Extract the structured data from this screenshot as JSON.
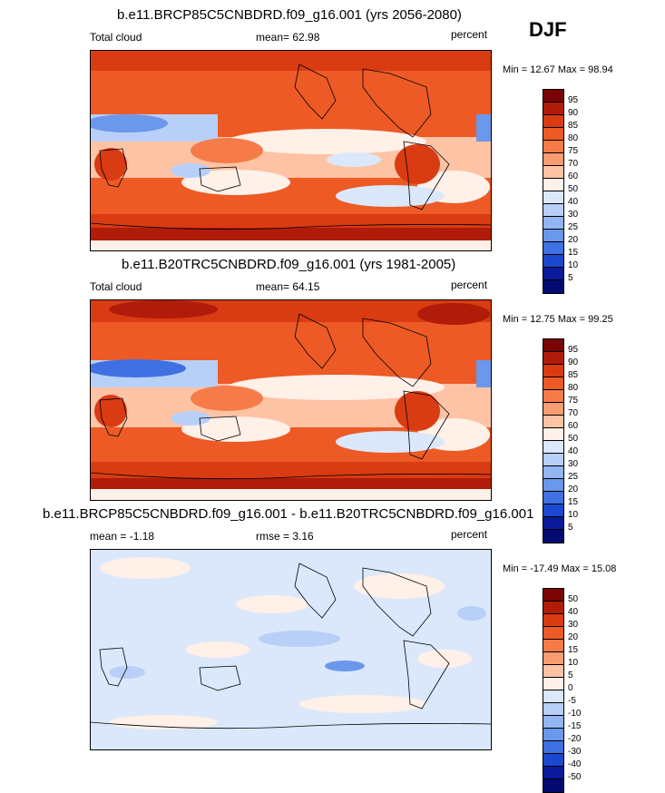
{
  "season": "DJF",
  "panels": [
    {
      "title": "b.e11.BRCP85C5CNBDRD.f09_g16.001 (yrs 2056-2080)",
      "left_label": "Total cloud",
      "mid_label": "mean=  62.98",
      "right_label": "percent",
      "minmax": "Min =  12.67 Max =  98.94",
      "colorbar": {
        "labels": [
          "95",
          "90",
          "85",
          "80",
          "75",
          "70",
          "60",
          "50",
          "40",
          "30",
          "25",
          "20",
          "15",
          "10",
          "5"
        ],
        "colors": [
          "#7a0403",
          "#b01c09",
          "#d93b13",
          "#ed5a26",
          "#f57c49",
          "#fa9c72",
          "#fdc3a4",
          "#fff0e8",
          "#dbe8fb",
          "#b8cff8",
          "#93b5f2",
          "#6b97ec",
          "#3f71e3",
          "#1c47cf",
          "#0a1a9a",
          "#030a70"
        ]
      }
    },
    {
      "title": "b.e11.B20TRC5CNBDRD.f09_g16.001 (yrs 1981-2005)",
      "left_label": "Total cloud",
      "mid_label": "mean=  64.15",
      "right_label": "percent",
      "minmax": "Min =  12.75 Max =  99.25",
      "colorbar": {
        "labels": [
          "95",
          "90",
          "85",
          "80",
          "75",
          "70",
          "60",
          "50",
          "40",
          "30",
          "25",
          "20",
          "15",
          "10",
          "5"
        ],
        "colors": [
          "#7a0403",
          "#b01c09",
          "#d93b13",
          "#ed5a26",
          "#f57c49",
          "#fa9c72",
          "#fdc3a4",
          "#fff0e8",
          "#dbe8fb",
          "#b8cff8",
          "#93b5f2",
          "#6b97ec",
          "#3f71e3",
          "#1c47cf",
          "#0a1a9a",
          "#030a70"
        ]
      }
    },
    {
      "title": "b.e11.BRCP85C5CNBDRD.f09_g16.001 - b.e11.B20TRC5CNBDRD.f09_g16.001",
      "left_label": "mean =  -1.18",
      "mid_label": "rmse =   3.16",
      "right_label": "percent",
      "minmax": "Min = -17.49 Max =  15.08",
      "colorbar": {
        "labels": [
          "50",
          "40",
          "30",
          "20",
          "15",
          "10",
          "5",
          "0",
          "-5",
          "-10",
          "-15",
          "-20",
          "-30",
          "-40",
          "-50"
        ],
        "colors": [
          "#7a0403",
          "#b01c09",
          "#d93b13",
          "#ed5a26",
          "#f57c49",
          "#fa9c72",
          "#fdc3a4",
          "#fff0e8",
          "#dbe8fb",
          "#b8cff8",
          "#93b5f2",
          "#6b97ec",
          "#3f71e3",
          "#1c47cf",
          "#0a1a9a",
          "#030a70"
        ]
      }
    }
  ]
}
